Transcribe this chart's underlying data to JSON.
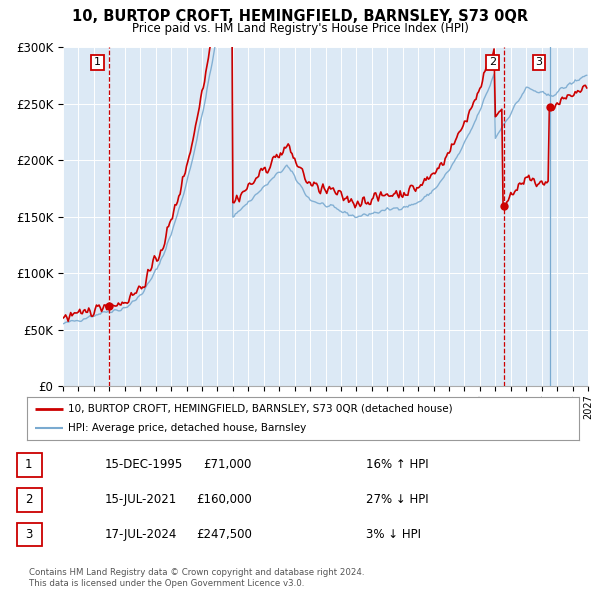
{
  "title": "10, BURTOP CROFT, HEMINGFIELD, BARNSLEY, S73 0QR",
  "subtitle": "Price paid vs. HM Land Registry's House Price Index (HPI)",
  "property_label": "10, BURTOP CROFT, HEMINGFIELD, BARNSLEY, S73 0QR (detached house)",
  "hpi_label": "HPI: Average price, detached house, Barnsley",
  "property_color": "#cc0000",
  "hpi_color": "#7aaad0",
  "fig_bg_color": "#ffffff",
  "plot_bg_color": "#dce9f5",
  "ylim": [
    0,
    300000
  ],
  "yticks": [
    0,
    50000,
    100000,
    150000,
    200000,
    250000,
    300000
  ],
  "ytick_labels": [
    "£0",
    "£50K",
    "£100K",
    "£150K",
    "£200K",
    "£250K",
    "£300K"
  ],
  "xmin": 1993,
  "xmax": 2027,
  "transactions": [
    {
      "num": "1",
      "date": "15-DEC-1995",
      "price": 71000,
      "year": 1995.96,
      "hpi_pct": "16%",
      "hpi_dir": "↑"
    },
    {
      "num": "2",
      "date": "15-JUL-2021",
      "price": 160000,
      "year": 2021.54,
      "hpi_pct": "27%",
      "hpi_dir": "↓"
    },
    {
      "num": "3",
      "date": "17-JUL-2024",
      "price": 247500,
      "year": 2024.54,
      "hpi_pct": "3%",
      "hpi_dir": "↓"
    }
  ],
  "table_rows": [
    [
      "1",
      "15-DEC-1995",
      "£71,000",
      "16% ↑ HPI"
    ],
    [
      "2",
      "15-JUL-2021",
      "£160,000",
      "27% ↓ HPI"
    ],
    [
      "3",
      "17-JUL-2024",
      "£247,500",
      "3% ↓ HPI"
    ]
  ],
  "footer": "Contains HM Land Registry data © Crown copyright and database right 2024.\nThis data is licensed under the Open Government Licence v3.0.",
  "grid_color": "#ffffff"
}
